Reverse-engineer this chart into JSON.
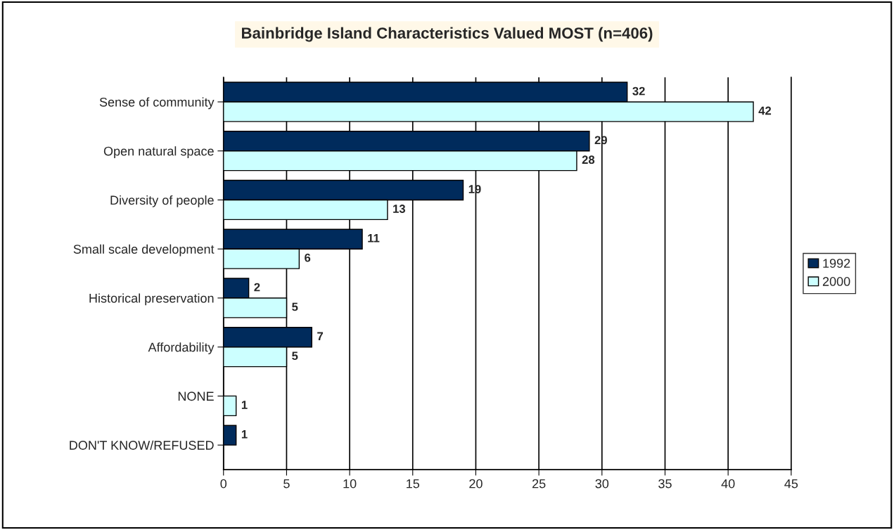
{
  "chart_data": {
    "type": "bar",
    "orientation": "horizontal",
    "title": "Bainbridge Island Characteristics Valued MOST (n=406)",
    "categories": [
      "Sense of community",
      "Open natural space",
      "Diversity of people",
      "Small scale development",
      "Historical preservation",
      "Affordability",
      "NONE",
      "DON'T KNOW/REFUSED"
    ],
    "series": [
      {
        "name": "1992",
        "color": "#002b5c",
        "values": [
          32,
          29,
          19,
          11,
          2,
          7,
          null,
          1
        ]
      },
      {
        "name": "2000",
        "color": "#ccffff",
        "values": [
          42,
          28,
          13,
          6,
          5,
          5,
          1,
          null
        ]
      }
    ],
    "xlim": [
      0,
      45
    ],
    "xticks": [
      0,
      5,
      10,
      15,
      20,
      25,
      30,
      35,
      40,
      45
    ],
    "grid": "x",
    "legend": "right",
    "data_labels": true
  }
}
